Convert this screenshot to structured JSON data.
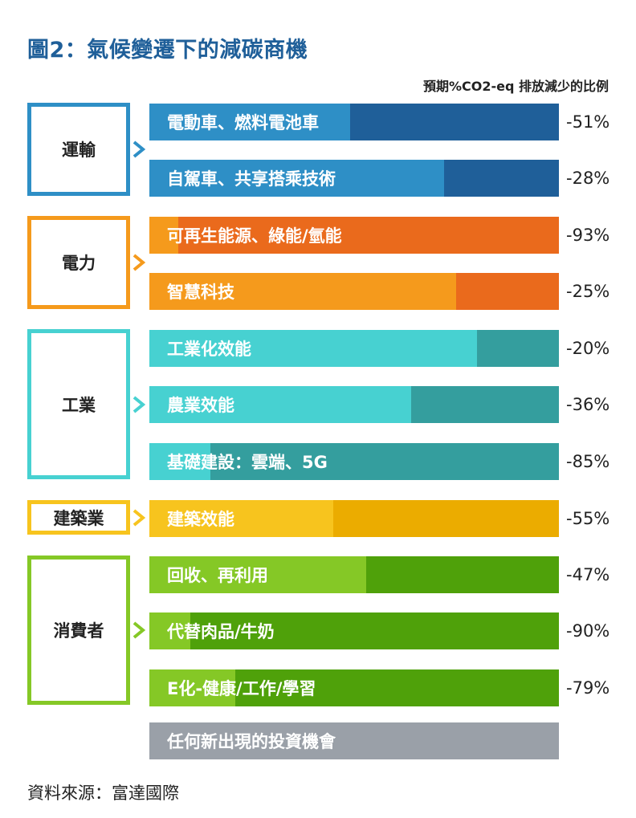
{
  "title": "圖2：氣候變遷下的減碳商機",
  "subtitle": "預期%CO2-eq 排放減少的比例",
  "source": "資料來源：富達國際",
  "colors": {
    "transport": "#2e8fc6",
    "transport_dark": "#1f5f99",
    "power": "#f59a1c",
    "power_dark": "#ea6a1c",
    "industry": "#47d1d1",
    "industry_dark": "#349e9e",
    "building": "#f7c41e",
    "building_dark": "#ebac00",
    "consumer": "#85c826",
    "consumer_dark": "#4fa10a",
    "other": "#9aa0a8"
  },
  "groups": [
    {
      "label": "運輸",
      "color": "transport"
    },
    {
      "label": "電力",
      "color": "power"
    },
    {
      "label": "工業",
      "color": "industry"
    },
    {
      "label": "建築業",
      "color": "building"
    },
    {
      "label": "消費者",
      "color": "consumer"
    }
  ],
  "chart_data": {
    "type": "bar",
    "orientation": "horizontal",
    "title": "圖2：氣候變遷下的減碳商機",
    "subtitle": "預期%CO2-eq 排放減少的比例",
    "categories": [
      "電動車、燃料電池車",
      "自駕車、共享搭乘技術",
      "可再生能源、綠能/氫能",
      "智慧科技",
      "工業化效能",
      "農業效能",
      "基礎建設：雲端、5G",
      "建築效能",
      "回收、再利用",
      "代替肉品/牛奶",
      "E化-健康/工作/學習",
      "任何新出現的投資機會"
    ],
    "values": [
      -51,
      -28,
      -93,
      -25,
      -20,
      -36,
      -85,
      -55,
      -47,
      -90,
      -79,
      null
    ],
    "value_labels": [
      "-51%",
      "-28%",
      "-93%",
      "-25%",
      "-20%",
      "-36%",
      "-85%",
      "-55%",
      "-47%",
      "-90%",
      "-79%",
      ""
    ],
    "group_of": [
      "運輸",
      "運輸",
      "電力",
      "電力",
      "工業",
      "工業",
      "工業",
      "建築業",
      "消費者",
      "消費者",
      "消費者",
      ""
    ],
    "xlim": [
      0,
      100
    ],
    "unit": "%"
  }
}
